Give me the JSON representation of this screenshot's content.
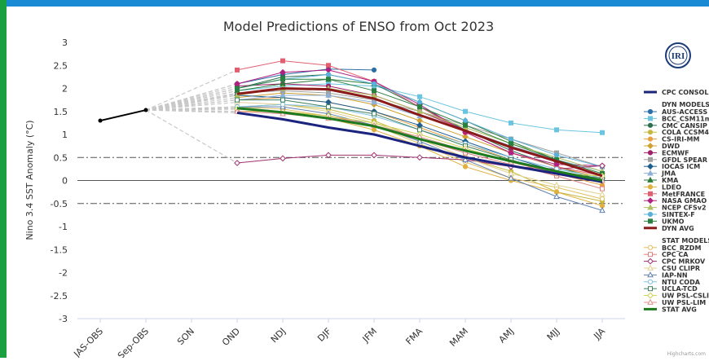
{
  "chart_data": {
    "type": "line",
    "title": "Model Predictions of ENSO from Oct 2023",
    "y_label": "Nino 3.4 SST Anomaly (°C)",
    "logo": "IRI",
    "credits": "Highcharts.com",
    "categories": [
      "JAS-OBS",
      "Sep-OBS",
      "SON",
      "OND",
      "NDJ",
      "DJF",
      "JFM",
      "FMA",
      "MAM",
      "AMJ",
      "MJJ",
      "JJA"
    ],
    "ylim": [
      -3,
      3
    ],
    "yticks": [
      3,
      2.5,
      2,
      1.5,
      1,
      0.5,
      0,
      -0.5,
      -1,
      -1.5,
      -2,
      -2.5,
      -3
    ],
    "thresholds": [
      0.5,
      -0.5
    ],
    "observed": {
      "color": "#000000",
      "values": [
        1.3,
        1.53,
        null,
        null,
        null,
        null,
        null,
        null,
        null,
        null,
        null,
        null
      ]
    },
    "legend_headings": {
      "dyn": "DYN MODELS:",
      "stat": "STAT MODELS:"
    },
    "series": [
      {
        "name": "CPC CONSOL",
        "color": "#1a237e",
        "thick": true,
        "values": [
          null,
          null,
          null,
          1.47,
          1.33,
          1.15,
          1.0,
          0.75,
          0.5,
          0.32,
          0.15,
          -0.03
        ]
      },
      {
        "name": "AUS-ACCESS",
        "group": "dyn",
        "color": "#2b6fa8",
        "marker": "circle",
        "values": [
          null,
          null,
          null,
          2.1,
          2.3,
          2.42,
          2.4,
          null,
          null,
          null,
          null,
          null
        ]
      },
      {
        "name": "BCC_CSM11m",
        "group": "dyn",
        "color": "#6cc5e0",
        "marker": "square",
        "values": [
          null,
          null,
          null,
          1.95,
          2.05,
          2.1,
          2.05,
          1.82,
          1.5,
          1.25,
          1.1,
          1.04
        ]
      },
      {
        "name": "CMC CANSIP",
        "group": "dyn",
        "color": "#2a6f4f",
        "marker": "circle",
        "values": [
          null,
          null,
          null,
          2.0,
          2.25,
          2.3,
          2.1,
          1.6,
          1.1,
          0.65,
          0.3,
          0.0
        ]
      },
      {
        "name": "COLA CCSM4",
        "group": "dyn",
        "color": "#c6b83e",
        "marker": "circle",
        "values": [
          null,
          null,
          null,
          1.6,
          1.65,
          1.55,
          1.3,
          0.9,
          0.5,
          0.2,
          -0.25,
          -0.45
        ]
      },
      {
        "name": "CS-IRI-MM",
        "group": "dyn",
        "color": "#e8a040",
        "marker": "circle",
        "values": [
          null,
          null,
          null,
          1.75,
          1.8,
          1.7,
          1.5,
          1.15,
          0.8,
          0.45,
          0.15,
          -0.1
        ]
      },
      {
        "name": "DWD",
        "group": "dyn",
        "color": "#d0a030",
        "marker": "diamond",
        "values": [
          null,
          null,
          null,
          1.8,
          1.9,
          1.85,
          1.65,
          1.3,
          0.95,
          0.6,
          0.3,
          0.05
        ]
      },
      {
        "name": "ECMWF",
        "group": "dyn",
        "color": "#a0206a",
        "marker": "circle",
        "values": [
          null,
          null,
          null,
          2.05,
          2.1,
          2.05,
          1.85,
          1.5,
          1.1,
          0.7,
          0.4,
          0.1
        ]
      },
      {
        "name": "GFDL SPEAR",
        "group": "dyn",
        "color": "#a0a0a0",
        "marker": "square",
        "values": [
          null,
          null,
          null,
          1.9,
          1.95,
          1.9,
          1.75,
          1.5,
          1.2,
          0.9,
          0.6,
          0.3
        ]
      },
      {
        "name": "IOCAS ICM",
        "group": "dyn",
        "color": "#1f5f8f",
        "marker": "diamond",
        "values": [
          null,
          null,
          null,
          1.85,
          1.8,
          1.7,
          1.5,
          1.2,
          0.85,
          0.5,
          0.2,
          0.0
        ]
      },
      {
        "name": "JMA",
        "group": "dyn",
        "color": "#8fb0d8",
        "marker": "triangle",
        "values": [
          null,
          null,
          null,
          1.75,
          1.85,
          1.85,
          1.7,
          1.4,
          1.1,
          0.75,
          0.45,
          0.2
        ]
      },
      {
        "name": "KMA",
        "group": "dyn",
        "color": "#2a7a3a",
        "marker": "triangle",
        "values": [
          null,
          null,
          null,
          1.95,
          2.1,
          2.2,
          2.1,
          1.7,
          1.3,
          0.85,
          0.45,
          0.1
        ]
      },
      {
        "name": "LDEO",
        "group": "dyn",
        "color": "#e0b040",
        "marker": "circle",
        "values": [
          null,
          null,
          null,
          1.5,
          1.5,
          1.35,
          1.1,
          0.75,
          0.3,
          0.0,
          -0.25,
          -0.55
        ]
      },
      {
        "name": "MetFRANCE",
        "group": "dyn",
        "color": "#e06070",
        "marker": "square",
        "values": [
          null,
          null,
          null,
          2.4,
          2.6,
          2.5,
          2.15,
          1.6,
          1.05,
          0.6,
          0.3,
          0.1
        ]
      },
      {
        "name": "NASA GMAO",
        "group": "dyn",
        "color": "#b02080",
        "marker": "diamond",
        "values": [
          null,
          null,
          null,
          2.1,
          2.35,
          2.4,
          2.15,
          1.65,
          1.05,
          0.6,
          0.35,
          0.32
        ]
      },
      {
        "name": "NCEP CFSv2",
        "group": "dyn",
        "color": "#b0c060",
        "marker": "triangle",
        "values": [
          null,
          null,
          null,
          1.85,
          2.0,
          2.0,
          1.85,
          1.5,
          1.15,
          0.8,
          0.5,
          0.2
        ]
      },
      {
        "name": "SINTEX-F",
        "group": "dyn",
        "color": "#5ab0d8",
        "marker": "circle",
        "values": [
          null,
          null,
          null,
          2.0,
          2.2,
          2.3,
          2.1,
          1.7,
          1.3,
          0.9,
          0.55,
          0.3
        ]
      },
      {
        "name": "UKMO",
        "group": "dyn",
        "color": "#2a8040",
        "marker": "square",
        "values": [
          null,
          null,
          null,
          2.0,
          2.2,
          2.2,
          1.95,
          1.6,
          1.2,
          0.8,
          0.45,
          0.15
        ]
      },
      {
        "name": "DYN AVG",
        "group": "dyn",
        "color": "#8b1a1a",
        "thick": true,
        "values": [
          null,
          null,
          null,
          1.88,
          2.0,
          1.98,
          1.78,
          1.42,
          1.08,
          0.72,
          0.42,
          0.1
        ]
      },
      {
        "name": "BCC_RZDM",
        "group": "stat",
        "color": "#e0c060",
        "marker": "open-circle",
        "values": [
          null,
          null,
          null,
          1.6,
          1.55,
          1.4,
          1.2,
          0.8,
          0.4,
          0.05,
          -0.15,
          -0.4
        ]
      },
      {
        "name": "CPC CA",
        "group": "stat",
        "color": "#e08080",
        "marker": "open-square",
        "values": [
          null,
          null,
          null,
          1.55,
          1.5,
          1.4,
          1.2,
          0.9,
          0.6,
          0.35,
          0.1,
          -0.18
        ]
      },
      {
        "name": "CPC MRKOV",
        "group": "stat",
        "color": "#a03070",
        "marker": "open-diamond",
        "values": [
          null,
          null,
          null,
          0.38,
          0.48,
          0.55,
          0.55,
          0.5,
          0.45,
          0.3,
          0.25,
          0.32
        ]
      },
      {
        "name": "CSU CLIPR",
        "group": "stat",
        "color": "#e0d090",
        "marker": "open-triangle",
        "values": [
          null,
          null,
          null,
          1.7,
          1.65,
          1.5,
          1.25,
          0.9,
          0.5,
          0.15,
          -0.1,
          -0.3
        ]
      },
      {
        "name": "IAP-NN",
        "group": "stat",
        "color": "#6080b0",
        "marker": "open-triangle",
        "values": [
          null,
          null,
          null,
          1.6,
          1.6,
          1.45,
          1.2,
          0.85,
          0.45,
          0.05,
          -0.35,
          -0.65
        ]
      },
      {
        "name": "NTU CODA",
        "group": "stat",
        "color": "#80c0e0",
        "marker": "open-circle",
        "values": [
          null,
          null,
          null,
          1.6,
          1.65,
          1.6,
          1.4,
          1.1,
          0.8,
          0.5,
          0.25,
          0.05
        ]
      },
      {
        "name": "UCLA-TCD",
        "group": "stat",
        "color": "#408060",
        "marker": "open-square",
        "values": [
          null,
          null,
          null,
          1.75,
          1.75,
          1.6,
          1.45,
          1.1,
          0.75,
          0.45,
          0.15,
          0.05
        ]
      },
      {
        "name": "UW PSL-CSLIM",
        "group": "stat",
        "color": "#d0d050",
        "marker": "open-diamond",
        "values": [
          null,
          null,
          null,
          1.55,
          1.5,
          1.4,
          1.25,
          1.0,
          0.7,
          0.4,
          0.15,
          0.1
        ]
      },
      {
        "name": "UW PSL-LIM",
        "group": "stat",
        "color": "#e09090",
        "marker": "open-triangle",
        "values": [
          null,
          null,
          null,
          1.5,
          1.45,
          1.35,
          1.2,
          0.95,
          0.65,
          0.4,
          0.15,
          0.0
        ]
      },
      {
        "name": "STAT AVG",
        "group": "stat",
        "color": "#1e7a1e",
        "thick": true,
        "values": [
          null,
          null,
          null,
          1.57,
          1.48,
          1.35,
          1.18,
          0.9,
          0.65,
          0.42,
          0.2,
          0.0
        ]
      }
    ]
  }
}
